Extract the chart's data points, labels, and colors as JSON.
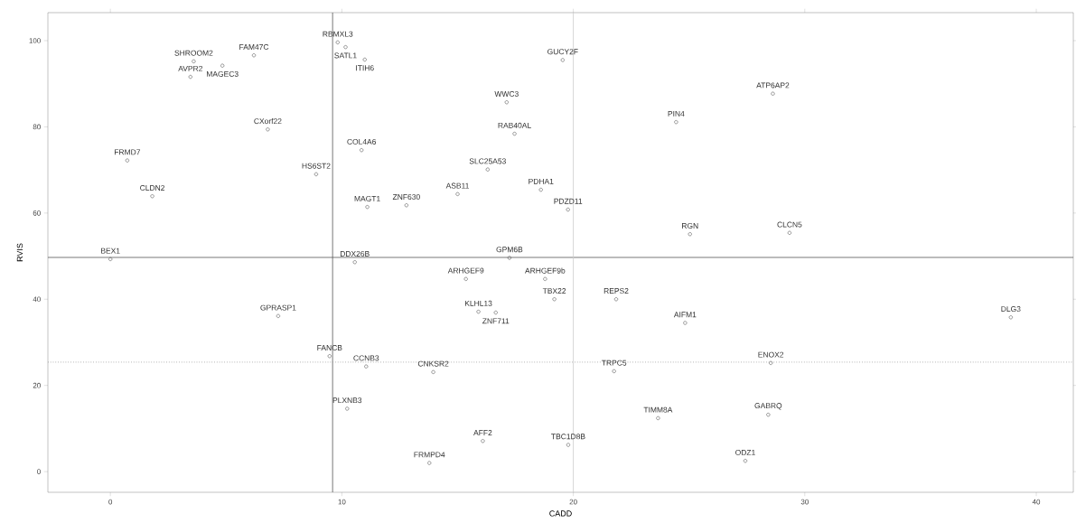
{
  "chart_data": {
    "type": "scatter",
    "xlabel": "CADD",
    "ylabel": "RVIS",
    "color": "#555555",
    "marker": "circle",
    "xlim": [
      -2.7,
      41.6
    ],
    "ylim": [
      -4.8,
      106.5
    ],
    "xticks": [
      0,
      10,
      20,
      30,
      40
    ],
    "yticks": [
      0,
      20,
      40,
      60,
      80,
      100
    ],
    "x": [
      3.6,
      6.2,
      4.84,
      3.46,
      6.8,
      0.73,
      1.81,
      0.0,
      8.89,
      9.82,
      10.16,
      10.99,
      10.85,
      11.1,
      12.79,
      15.0,
      16.3,
      17.12,
      19.54,
      17.46,
      18.6,
      19.77,
      18.78,
      17.24,
      24.44,
      25.04,
      28.62,
      29.34,
      10.56,
      7.25,
      9.47,
      10.23,
      11.05,
      13.95,
      13.78,
      16.09,
      19.78,
      23.66,
      21.76,
      21.85,
      24.83,
      15.36,
      15.9,
      16.65,
      19.18,
      28.53,
      28.42,
      27.43,
      38.9
    ],
    "values": [
      95.2,
      96.6,
      94.2,
      91.6,
      79.4,
      72.2,
      63.9,
      49.3,
      69.0,
      99.6,
      98.5,
      95.6,
      74.6,
      61.4,
      61.8,
      64.4,
      70.1,
      85.7,
      95.5,
      78.4,
      65.4,
      60.8,
      44.7,
      49.6,
      81.1,
      55.1,
      87.7,
      55.4,
      48.6,
      36.1,
      26.8,
      14.6,
      24.4,
      23.1,
      2.0,
      7.1,
      6.2,
      12.4,
      23.3,
      40.0,
      34.5,
      44.7,
      37.1,
      36.9,
      40.0,
      25.2,
      13.2,
      2.5,
      35.8
    ],
    "value_labels": [
      "SHROOM2",
      "FAM47C",
      "MAGEC3",
      "AVPR2",
      "CXorf22",
      "FRMD7",
      "CLDN2",
      "BEX1",
      "HS6ST2",
      "RBMXL3",
      "SATL1",
      "ITIH6",
      "COL4A6",
      "MAGT1",
      "ZNF630",
      "ASB11",
      "SLC25A53",
      "WWC3",
      "GUCY2F",
      "RAB40AL",
      "PDHA1",
      "PDZD11",
      "ARHGEF9b",
      "GPM6B",
      "PIN4",
      "RGN",
      "ATP6AP2",
      "CLCN5",
      "DDX26B",
      "GPRASP1",
      "FANCB",
      "PLXNB3",
      "CCNB3",
      "CNKSR2",
      "FRMPD4",
      "AFF2",
      "TBC1D8B",
      "TIMM8A",
      "TRPC5",
      "REPS2",
      "AIFM1",
      "ARHGEF9",
      "KLHL13",
      "ZNF711",
      "TBX22",
      "ENOX2",
      "GABRQ",
      "ODZ1",
      "DLG3"
    ],
    "ref_lines": [
      {
        "axis": "x",
        "value": 9.6,
        "color": "#555555",
        "line_style": "solid"
      },
      {
        "axis": "y",
        "value": 49.7,
        "color": "#555555",
        "line_style": "solid"
      },
      {
        "axis": "y",
        "value": 25.4,
        "color": "#888888",
        "line_style": "dotted"
      },
      {
        "axis": "x",
        "value": 20,
        "color": "#cccccc",
        "line_style": "solid"
      }
    ]
  }
}
